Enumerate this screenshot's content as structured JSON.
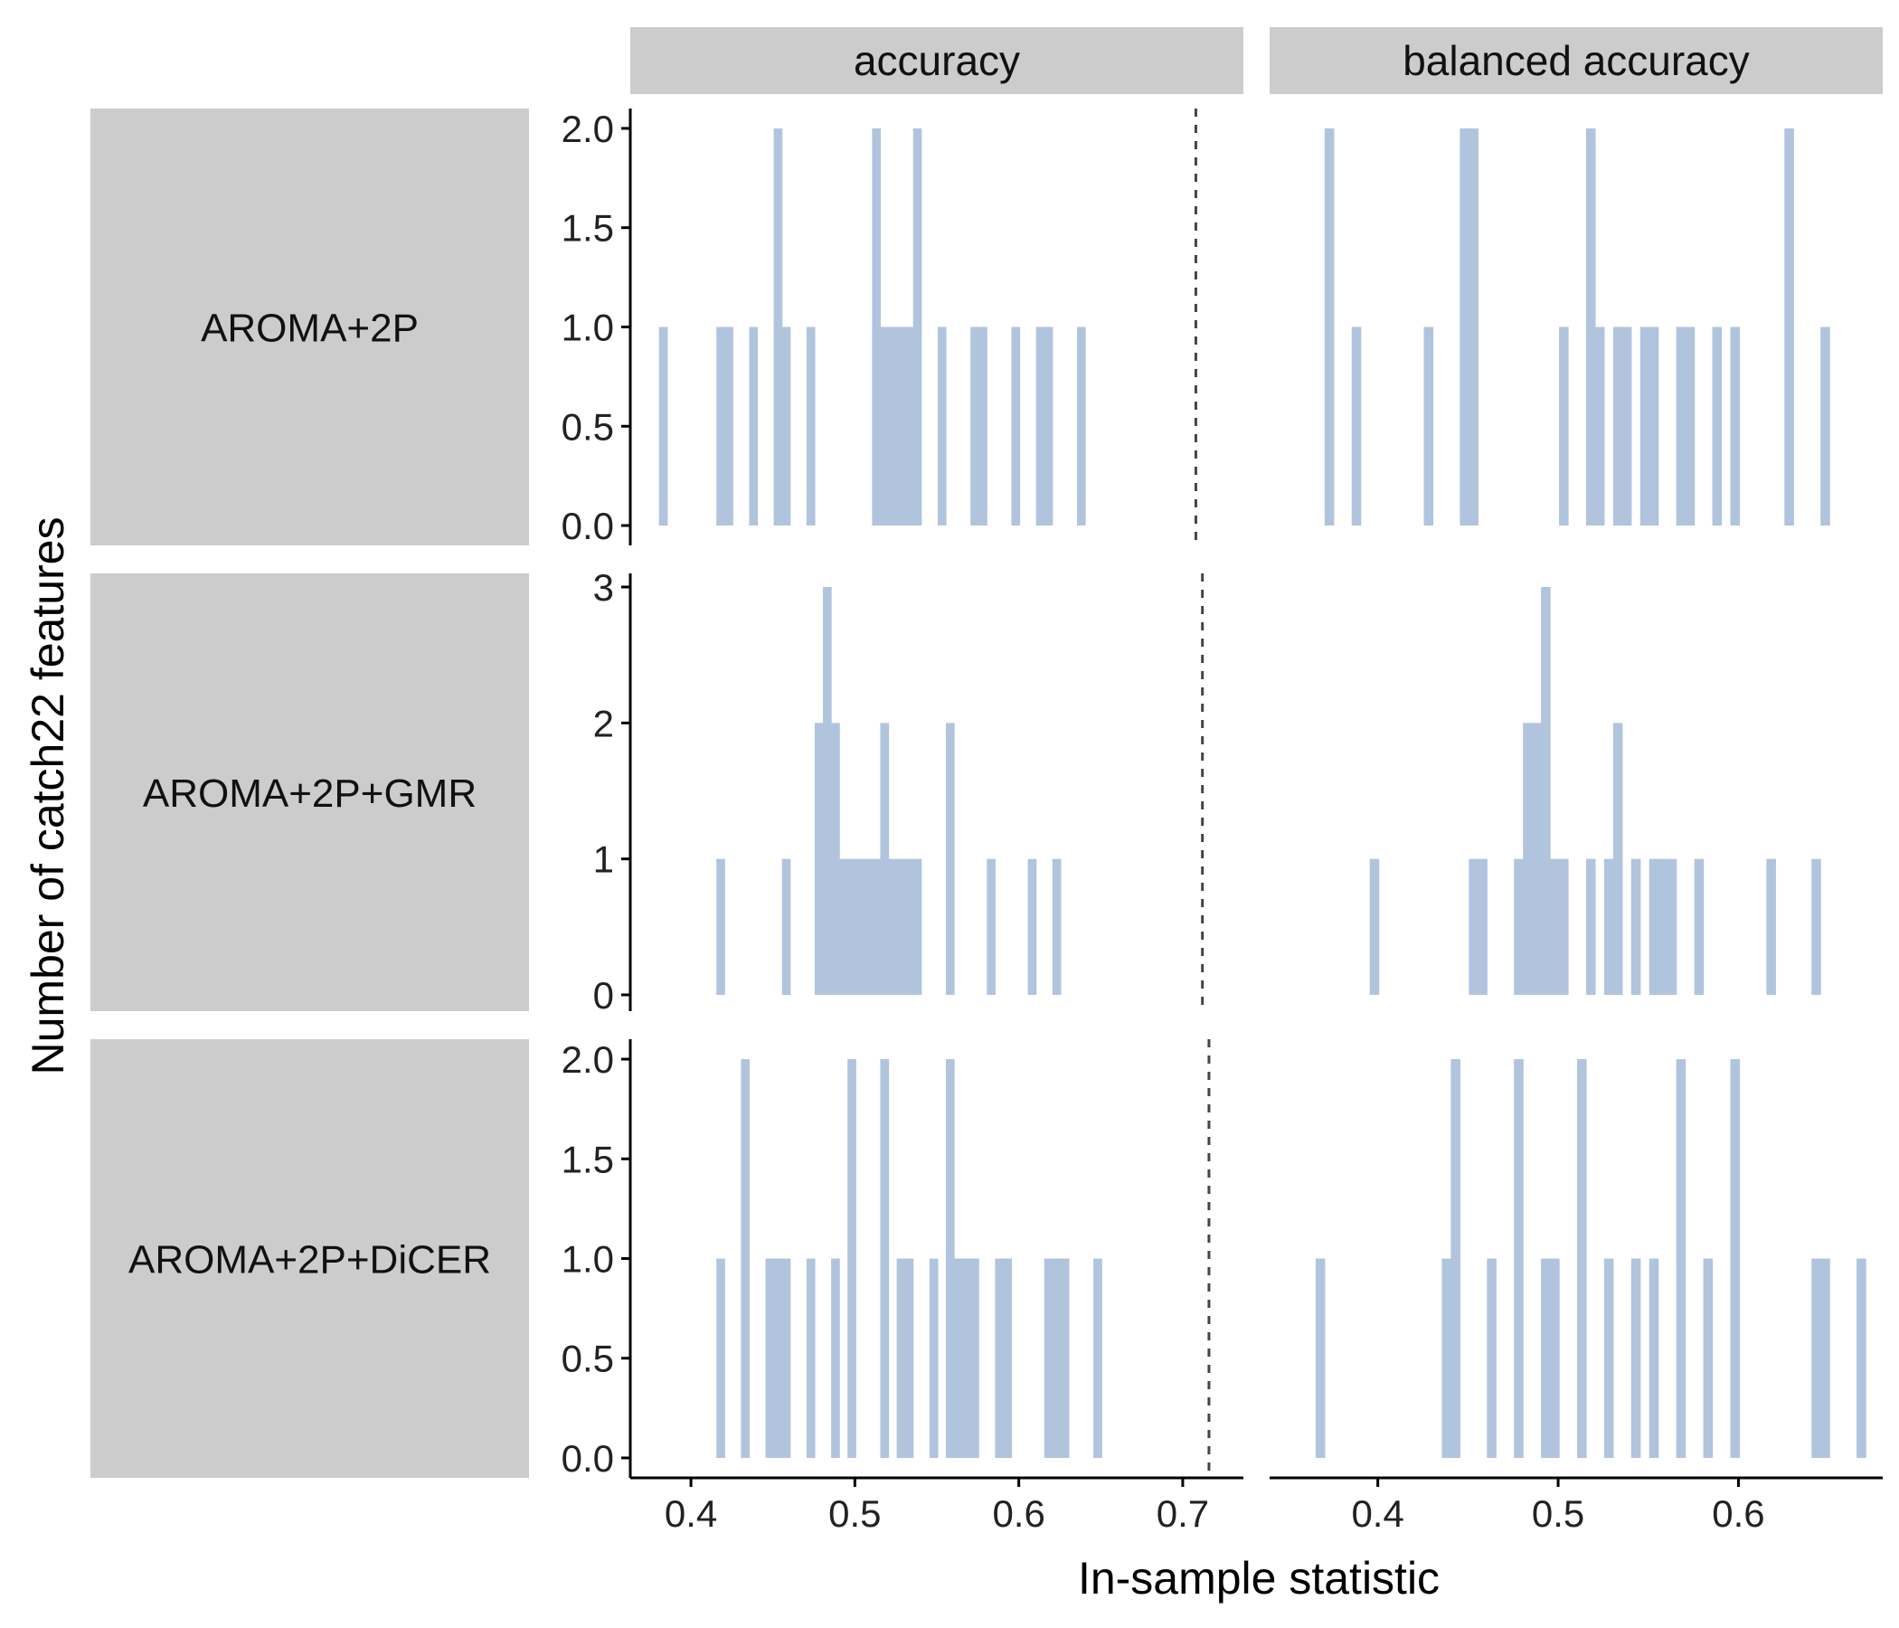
{
  "figure": {
    "xlabel": "In-sample statistic",
    "ylabel": "Number of catch22 features"
  },
  "colors": {
    "bar": "#b0c4de",
    "strip": "#cccccc",
    "axis": "#000000",
    "reference_line": "#444444"
  },
  "chart_data": {
    "type": "bar",
    "layout": "facet-grid histogram",
    "columns": [
      "accuracy",
      "balanced accuracy"
    ],
    "rows": [
      "AROMA+2P",
      "AROMA+2P+GMR",
      "AROMA+2P+DiCER"
    ],
    "bin_width": 0.005,
    "axes": {
      "accuracy": {
        "xlim": [
          0.363,
          0.737
        ],
        "xticks": [
          0.4,
          0.5,
          0.6,
          0.7
        ],
        "xtick_labels": [
          "0.4",
          "0.5",
          "0.6",
          "0.7"
        ]
      },
      "balanced accuracy": {
        "xlim": [
          0.34,
          0.68
        ],
        "xticks": [
          0.4,
          0.5,
          0.6
        ],
        "xtick_labels": [
          "0.4",
          "0.5",
          "0.6"
        ]
      }
    },
    "row_axes": {
      "AROMA+2P": {
        "ylim": [
          -0.1,
          2.1
        ],
        "yticks": [
          0,
          0.5,
          1,
          1.5,
          2
        ],
        "ytick_labels": [
          "0.0",
          "0.5",
          "1.0",
          "1.5",
          "2.0"
        ]
      },
      "AROMA+2P+GMR": {
        "ylim": [
          -0.12,
          3.1
        ],
        "yticks": [
          0,
          1,
          2,
          3
        ],
        "ytick_labels": [
          "0",
          "1",
          "2",
          "3"
        ]
      },
      "AROMA+2P+DiCER": {
        "ylim": [
          -0.1,
          2.1
        ],
        "yticks": [
          0,
          0.5,
          1,
          1.5,
          2
        ],
        "ytick_labels": [
          "0.0",
          "0.5",
          "1.0",
          "1.5",
          "2.0"
        ]
      }
    },
    "reference_lines": {
      "AROMA+2P": 0.708,
      "AROMA+2P+GMR": 0.712,
      "AROMA+2P+DiCER": 0.716
    },
    "panels": [
      {
        "row": "AROMA+2P",
        "column": "accuracy",
        "x": [
          0.383,
          0.418,
          0.423,
          0.438,
          0.453,
          0.458,
          0.473,
          0.513,
          0.518,
          0.523,
          0.528,
          0.533,
          0.538,
          0.553,
          0.573,
          0.578,
          0.598,
          0.613,
          0.618,
          0.638
        ],
        "y": [
          1,
          1,
          1,
          1,
          2,
          1,
          1,
          2,
          1,
          1,
          1,
          1,
          2,
          1,
          1,
          1,
          1,
          1,
          1,
          1
        ]
      },
      {
        "row": "AROMA+2P",
        "column": "balanced accuracy",
        "x": [
          0.373,
          0.388,
          0.428,
          0.448,
          0.453,
          0.503,
          0.518,
          0.523,
          0.533,
          0.538,
          0.548,
          0.553,
          0.568,
          0.573,
          0.588,
          0.598,
          0.628,
          0.648
        ],
        "y": [
          2,
          1,
          1,
          2,
          2,
          1,
          2,
          1,
          1,
          1,
          1,
          1,
          1,
          1,
          1,
          1,
          2,
          1
        ]
      },
      {
        "row": "AROMA+2P+GMR",
        "column": "accuracy",
        "x": [
          0.418,
          0.458,
          0.478,
          0.483,
          0.488,
          0.493,
          0.498,
          0.503,
          0.508,
          0.513,
          0.518,
          0.523,
          0.528,
          0.533,
          0.538,
          0.558,
          0.583,
          0.608,
          0.623
        ],
        "y": [
          1,
          1,
          2,
          3,
          2,
          1,
          1,
          1,
          1,
          1,
          2,
          1,
          1,
          1,
          1,
          2,
          1,
          1,
          1
        ]
      },
      {
        "row": "AROMA+2P+GMR",
        "column": "balanced accuracy",
        "x": [
          0.398,
          0.453,
          0.458,
          0.478,
          0.483,
          0.488,
          0.493,
          0.498,
          0.503,
          0.518,
          0.528,
          0.533,
          0.543,
          0.553,
          0.558,
          0.563,
          0.578,
          0.618,
          0.643
        ],
        "y": [
          1,
          1,
          1,
          1,
          2,
          2,
          3,
          1,
          1,
          1,
          1,
          2,
          1,
          1,
          1,
          1,
          1,
          1,
          1
        ]
      },
      {
        "row": "AROMA+2P+DiCER",
        "column": "accuracy",
        "x": [
          0.418,
          0.433,
          0.448,
          0.453,
          0.458,
          0.473,
          0.488,
          0.498,
          0.518,
          0.528,
          0.533,
          0.548,
          0.558,
          0.563,
          0.568,
          0.573,
          0.588,
          0.593,
          0.618,
          0.623,
          0.628,
          0.648
        ],
        "y": [
          1,
          2,
          1,
          1,
          1,
          1,
          1,
          2,
          2,
          1,
          1,
          1,
          2,
          1,
          1,
          1,
          1,
          1,
          1,
          1,
          1,
          1
        ]
      },
      {
        "row": "AROMA+2P+DiCER",
        "column": "balanced accuracy",
        "x": [
          0.368,
          0.438,
          0.443,
          0.463,
          0.478,
          0.493,
          0.498,
          0.513,
          0.528,
          0.543,
          0.553,
          0.568,
          0.583,
          0.598,
          0.643,
          0.648,
          0.668
        ],
        "y": [
          1,
          1,
          2,
          1,
          2,
          1,
          1,
          2,
          1,
          1,
          1,
          2,
          1,
          2,
          1,
          1,
          1
        ]
      }
    ]
  }
}
